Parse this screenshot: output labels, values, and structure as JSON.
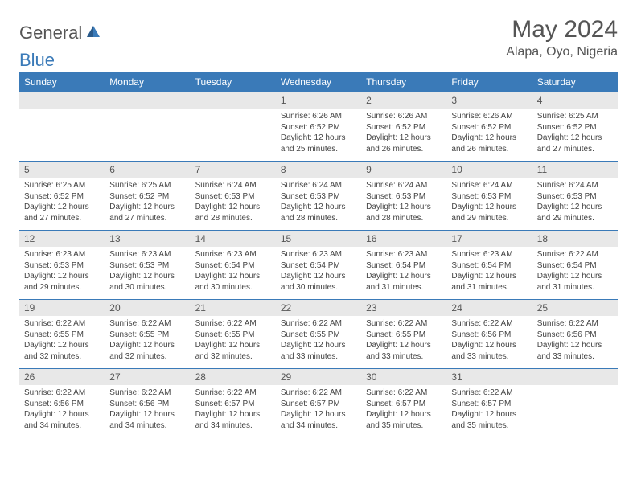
{
  "logo": {
    "text_general": "General",
    "text_blue": "Blue"
  },
  "header": {
    "month_title": "May 2024",
    "location": "Alapa, Oyo, Nigeria"
  },
  "colors": {
    "header_bg": "#3a7ab8",
    "header_text": "#ffffff",
    "day_number_bg": "#e8e8e8",
    "text_primary": "#555555",
    "text_body": "#444444",
    "logo_blue": "#3a7ab8"
  },
  "weekdays": [
    "Sunday",
    "Monday",
    "Tuesday",
    "Wednesday",
    "Thursday",
    "Friday",
    "Saturday"
  ],
  "weeks": [
    [
      null,
      null,
      null,
      {
        "n": "1",
        "sunrise": "6:26 AM",
        "sunset": "6:52 PM",
        "daylight": "12 hours and 25 minutes."
      },
      {
        "n": "2",
        "sunrise": "6:26 AM",
        "sunset": "6:52 PM",
        "daylight": "12 hours and 26 minutes."
      },
      {
        "n": "3",
        "sunrise": "6:26 AM",
        "sunset": "6:52 PM",
        "daylight": "12 hours and 26 minutes."
      },
      {
        "n": "4",
        "sunrise": "6:25 AM",
        "sunset": "6:52 PM",
        "daylight": "12 hours and 27 minutes."
      }
    ],
    [
      {
        "n": "5",
        "sunrise": "6:25 AM",
        "sunset": "6:52 PM",
        "daylight": "12 hours and 27 minutes."
      },
      {
        "n": "6",
        "sunrise": "6:25 AM",
        "sunset": "6:52 PM",
        "daylight": "12 hours and 27 minutes."
      },
      {
        "n": "7",
        "sunrise": "6:24 AM",
        "sunset": "6:53 PM",
        "daylight": "12 hours and 28 minutes."
      },
      {
        "n": "8",
        "sunrise": "6:24 AM",
        "sunset": "6:53 PM",
        "daylight": "12 hours and 28 minutes."
      },
      {
        "n": "9",
        "sunrise": "6:24 AM",
        "sunset": "6:53 PM",
        "daylight": "12 hours and 28 minutes."
      },
      {
        "n": "10",
        "sunrise": "6:24 AM",
        "sunset": "6:53 PM",
        "daylight": "12 hours and 29 minutes."
      },
      {
        "n": "11",
        "sunrise": "6:24 AM",
        "sunset": "6:53 PM",
        "daylight": "12 hours and 29 minutes."
      }
    ],
    [
      {
        "n": "12",
        "sunrise": "6:23 AM",
        "sunset": "6:53 PM",
        "daylight": "12 hours and 29 minutes."
      },
      {
        "n": "13",
        "sunrise": "6:23 AM",
        "sunset": "6:53 PM",
        "daylight": "12 hours and 30 minutes."
      },
      {
        "n": "14",
        "sunrise": "6:23 AM",
        "sunset": "6:54 PM",
        "daylight": "12 hours and 30 minutes."
      },
      {
        "n": "15",
        "sunrise": "6:23 AM",
        "sunset": "6:54 PM",
        "daylight": "12 hours and 30 minutes."
      },
      {
        "n": "16",
        "sunrise": "6:23 AM",
        "sunset": "6:54 PM",
        "daylight": "12 hours and 31 minutes."
      },
      {
        "n": "17",
        "sunrise": "6:23 AM",
        "sunset": "6:54 PM",
        "daylight": "12 hours and 31 minutes."
      },
      {
        "n": "18",
        "sunrise": "6:22 AM",
        "sunset": "6:54 PM",
        "daylight": "12 hours and 31 minutes."
      }
    ],
    [
      {
        "n": "19",
        "sunrise": "6:22 AM",
        "sunset": "6:55 PM",
        "daylight": "12 hours and 32 minutes."
      },
      {
        "n": "20",
        "sunrise": "6:22 AM",
        "sunset": "6:55 PM",
        "daylight": "12 hours and 32 minutes."
      },
      {
        "n": "21",
        "sunrise": "6:22 AM",
        "sunset": "6:55 PM",
        "daylight": "12 hours and 32 minutes."
      },
      {
        "n": "22",
        "sunrise": "6:22 AM",
        "sunset": "6:55 PM",
        "daylight": "12 hours and 33 minutes."
      },
      {
        "n": "23",
        "sunrise": "6:22 AM",
        "sunset": "6:55 PM",
        "daylight": "12 hours and 33 minutes."
      },
      {
        "n": "24",
        "sunrise": "6:22 AM",
        "sunset": "6:56 PM",
        "daylight": "12 hours and 33 minutes."
      },
      {
        "n": "25",
        "sunrise": "6:22 AM",
        "sunset": "6:56 PM",
        "daylight": "12 hours and 33 minutes."
      }
    ],
    [
      {
        "n": "26",
        "sunrise": "6:22 AM",
        "sunset": "6:56 PM",
        "daylight": "12 hours and 34 minutes."
      },
      {
        "n": "27",
        "sunrise": "6:22 AM",
        "sunset": "6:56 PM",
        "daylight": "12 hours and 34 minutes."
      },
      {
        "n": "28",
        "sunrise": "6:22 AM",
        "sunset": "6:57 PM",
        "daylight": "12 hours and 34 minutes."
      },
      {
        "n": "29",
        "sunrise": "6:22 AM",
        "sunset": "6:57 PM",
        "daylight": "12 hours and 34 minutes."
      },
      {
        "n": "30",
        "sunrise": "6:22 AM",
        "sunset": "6:57 PM",
        "daylight": "12 hours and 35 minutes."
      },
      {
        "n": "31",
        "sunrise": "6:22 AM",
        "sunset": "6:57 PM",
        "daylight": "12 hours and 35 minutes."
      },
      null
    ]
  ],
  "labels": {
    "sunrise_prefix": "Sunrise: ",
    "sunset_prefix": "Sunset: ",
    "daylight_prefix": "Daylight: "
  }
}
